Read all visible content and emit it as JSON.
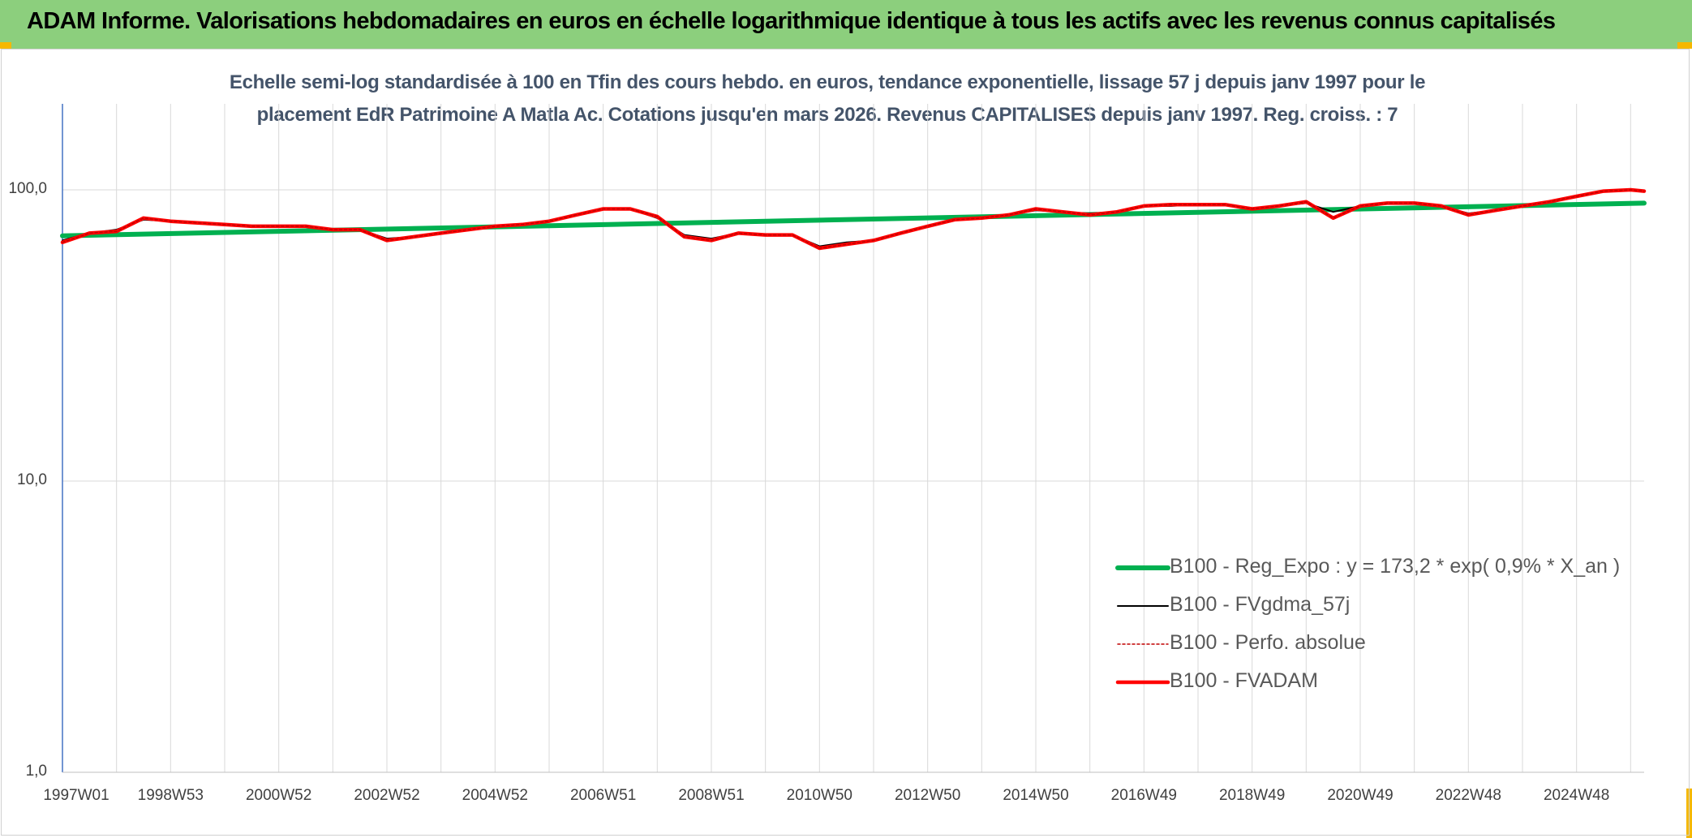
{
  "header": {
    "title": "ADAM Informe. Valorisations hebdomadaires en euros en échelle logarithmique identique à tous les actifs avec les revenus connus capitalisés"
  },
  "colors": {
    "header_bg": "#8ccf7d",
    "corner_accent": "#f5b800",
    "trend": "#00b050",
    "smooth": "#000000",
    "perf": "#c00000",
    "fvadam": "#ff0000",
    "title_text": "#44546a",
    "grid": "#d9d9d9"
  },
  "chart_data": {
    "type": "line",
    "title_line1": "Echelle semi-log standardisée à 100 en Tfin des cours hebdo. en euros, tendance exponentielle, lissage 57 j depuis janv 1997 pour le",
    "title_line2": "placement EdR Patrimoine A Matla Ac. Cotations jusqu'en mars 2026. Revenus CAPITALISES depuis janv 1997. Reg. croiss. : 7",
    "y_scale": "log",
    "ylim": [
      1,
      180
    ],
    "y_ticks": [
      {
        "value": 100,
        "label": "100,0"
      },
      {
        "value": 10,
        "label": "10,0"
      },
      {
        "value": 1,
        "label": "1,0"
      }
    ],
    "x_range": [
      1997.0,
      2026.25
    ],
    "x_ticks": [
      {
        "value": 1997.0,
        "label": "1997W01"
      },
      {
        "value": 1999.0,
        "label": "1998W53"
      },
      {
        "value": 2001.0,
        "label": "2000W52"
      },
      {
        "value": 2003.0,
        "label": "2002W52"
      },
      {
        "value": 2005.0,
        "label": "2004W52"
      },
      {
        "value": 2007.0,
        "label": "2006W51"
      },
      {
        "value": 2009.0,
        "label": "2008W51"
      },
      {
        "value": 2011.0,
        "label": "2010W50"
      },
      {
        "value": 2013.0,
        "label": "2012W50"
      },
      {
        "value": 2015.0,
        "label": "2014W50"
      },
      {
        "value": 2017.0,
        "label": "2016W49"
      },
      {
        "value": 2019.0,
        "label": "2018W49"
      },
      {
        "value": 2021.0,
        "label": "2020W49"
      },
      {
        "value": 2023.0,
        "label": "2022W48"
      },
      {
        "value": 2025.0,
        "label": "2024W48"
      }
    ],
    "x_gridlines": [
      1997.0,
      1998.0,
      1999.0,
      2000.0,
      2001.0,
      2002.0,
      2003.0,
      2004.0,
      2005.0,
      2006.0,
      2007.0,
      2008.0,
      2009.0,
      2010.0,
      2011.0,
      2012.0,
      2013.0,
      2014.0,
      2015.0,
      2016.0,
      2017.0,
      2018.0,
      2019.0,
      2020.0,
      2021.0,
      2022.0,
      2023.0,
      2024.0,
      2025.0,
      2026.0
    ],
    "legend_position": "bottom-right",
    "series": [
      {
        "name": "B100 - Reg_Expo : y = 173,2 * exp( 0,9% *  X_an )",
        "style": "trend",
        "x": [
          1997.0,
          2026.25
        ],
        "y": [
          69.5,
          90.0
        ]
      },
      {
        "name": "B100 - FVgdma_57j",
        "style": "smooth",
        "x": [
          1997.0,
          1997.5,
          1998.0,
          1998.5,
          1999.0,
          1999.5,
          2000.0,
          2000.5,
          2001.0,
          2001.5,
          2002.0,
          2002.5,
          2003.0,
          2003.5,
          2004.0,
          2004.5,
          2005.0,
          2005.5,
          2006.0,
          2006.5,
          2007.0,
          2007.5,
          2008.0,
          2008.5,
          2009.0,
          2009.5,
          2010.0,
          2010.5,
          2011.0,
          2011.5,
          2012.0,
          2012.5,
          2013.0,
          2013.5,
          2014.0,
          2014.5,
          2015.0,
          2015.5,
          2016.0,
          2016.5,
          2017.0,
          2017.5,
          2018.0,
          2018.5,
          2019.0,
          2019.5,
          2020.0,
          2020.5,
          2021.0,
          2021.5,
          2022.0,
          2022.5,
          2023.0,
          2023.5,
          2024.0,
          2024.5,
          2025.0,
          2025.5,
          2026.0,
          2026.25
        ],
        "y": [
          67,
          71,
          73,
          79,
          78,
          77,
          76,
          75,
          75,
          75,
          73,
          73,
          68,
          69,
          71,
          73,
          75,
          76,
          78,
          82,
          86,
          86,
          80,
          70,
          68,
          71,
          70,
          70,
          64,
          66,
          67,
          71,
          75,
          79,
          80,
          82,
          85,
          84,
          83,
          84,
          88,
          88,
          89,
          89,
          86,
          88,
          90,
          84,
          88,
          90,
          90,
          88,
          83,
          85,
          88,
          91,
          95,
          99,
          100,
          99
        ]
      },
      {
        "name": "B100 - Perfo. absolue",
        "style": "perf",
        "x": [
          1997.0,
          1997.5,
          1998.0,
          1998.5,
          1999.0,
          1999.5,
          2000.0,
          2000.5,
          2001.0,
          2001.5,
          2002.0,
          2002.5,
          2003.0,
          2003.5,
          2004.0,
          2004.5,
          2005.0,
          2005.5,
          2006.0,
          2006.5,
          2007.0,
          2007.5,
          2008.0,
          2008.5,
          2009.0,
          2009.5,
          2010.0,
          2010.5,
          2011.0,
          2011.5,
          2012.0,
          2012.5,
          2013.0,
          2013.5,
          2014.0,
          2014.5,
          2015.0,
          2015.5,
          2016.0,
          2016.5,
          2017.0,
          2017.5,
          2018.0,
          2018.5,
          2019.0,
          2019.5,
          2020.0,
          2020.5,
          2021.0,
          2021.5,
          2022.0,
          2022.5,
          2023.0,
          2023.5,
          2024.0,
          2024.5,
          2025.0,
          2025.5,
          2026.0,
          2026.25
        ],
        "y": [
          66,
          71,
          72,
          80,
          78,
          77,
          76,
          75,
          75,
          75,
          73,
          73,
          67,
          69,
          71,
          73,
          75,
          76,
          78,
          82,
          86,
          86,
          81,
          69,
          67,
          71,
          70,
          70,
          63,
          65,
          67,
          71,
          75,
          79,
          80,
          82,
          86,
          84,
          82,
          84,
          88,
          89,
          89,
          89,
          86,
          88,
          91,
          80,
          88,
          90,
          90,
          88,
          82,
          85,
          88,
          91,
          95,
          99,
          100,
          99
        ]
      },
      {
        "name": "B100 - FVADAM",
        "style": "fvadam",
        "x": [
          1997.0,
          1997.5,
          1998.0,
          1998.5,
          1999.0,
          1999.5,
          2000.0,
          2000.5,
          2001.0,
          2001.5,
          2002.0,
          2002.5,
          2003.0,
          2003.5,
          2004.0,
          2004.5,
          2005.0,
          2005.5,
          2006.0,
          2006.5,
          2007.0,
          2007.5,
          2008.0,
          2008.5,
          2009.0,
          2009.5,
          2010.0,
          2010.5,
          2011.0,
          2011.5,
          2012.0,
          2012.5,
          2013.0,
          2013.5,
          2014.0,
          2014.5,
          2015.0,
          2015.5,
          2016.0,
          2016.5,
          2017.0,
          2017.5,
          2018.0,
          2018.5,
          2019.0,
          2019.5,
          2020.0,
          2020.5,
          2021.0,
          2021.5,
          2022.0,
          2022.5,
          2023.0,
          2023.5,
          2024.0,
          2024.5,
          2025.0,
          2025.5,
          2026.0,
          2026.25
        ],
        "y": [
          66,
          71,
          72,
          80,
          78,
          77,
          76,
          75,
          75,
          75,
          73,
          73,
          67,
          69,
          71,
          73,
          75,
          76,
          78,
          82,
          86,
          86,
          81,
          69,
          67,
          71,
          70,
          70,
          63,
          65,
          67,
          71,
          75,
          79,
          80,
          82,
          86,
          84,
          82,
          84,
          88,
          89,
          89,
          89,
          86,
          88,
          91,
          80,
          88,
          90,
          90,
          88,
          82,
          85,
          88,
          91,
          95,
          99,
          100,
          99
        ]
      }
    ]
  }
}
